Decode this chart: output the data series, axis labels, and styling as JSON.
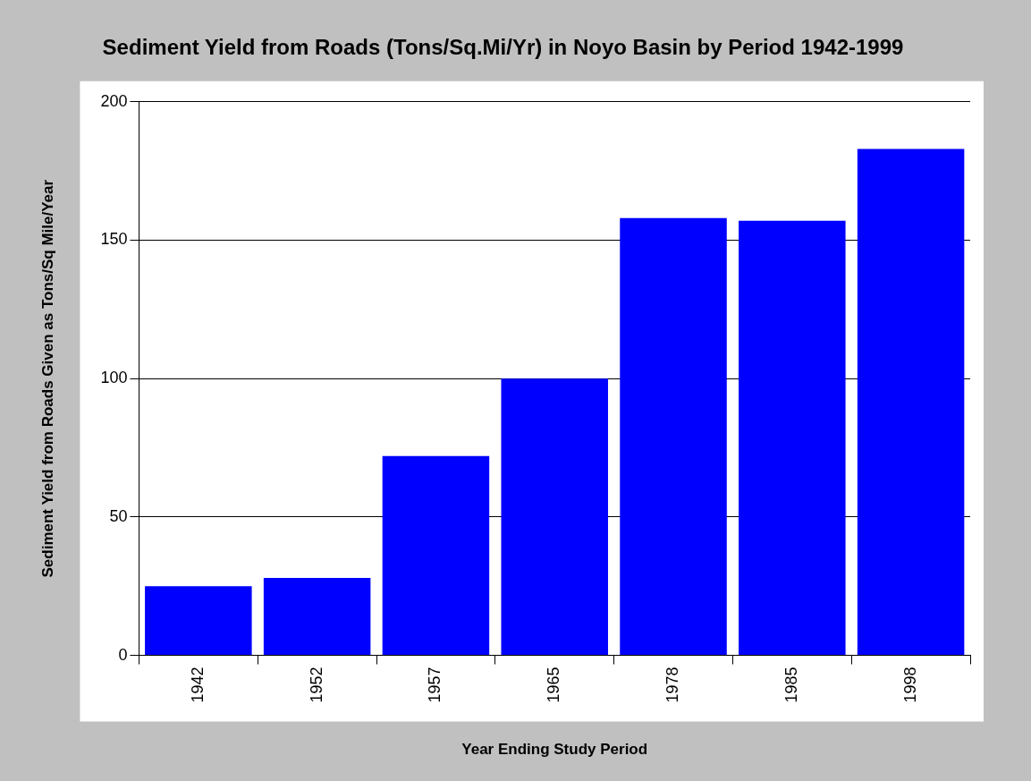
{
  "chart_data": {
    "type": "bar",
    "title": "Sediment Yield from Roads (Tons/Sq.Mi/Yr) in Noyo Basin by Period 1942-1999",
    "xlabel": "Year Ending Study Period",
    "ylabel": "Sediment Yield from Roads Given as Tons/Sq Mile/Year",
    "categories": [
      "1942",
      "1952",
      "1957",
      "1965",
      "1978",
      "1985",
      "1998"
    ],
    "values": [
      25,
      28,
      72,
      100,
      158,
      157,
      183
    ],
    "color": "#0000ff",
    "ylim": [
      0,
      200
    ],
    "yticks": [
      0,
      50,
      100,
      150,
      200
    ],
    "grid": "y"
  }
}
